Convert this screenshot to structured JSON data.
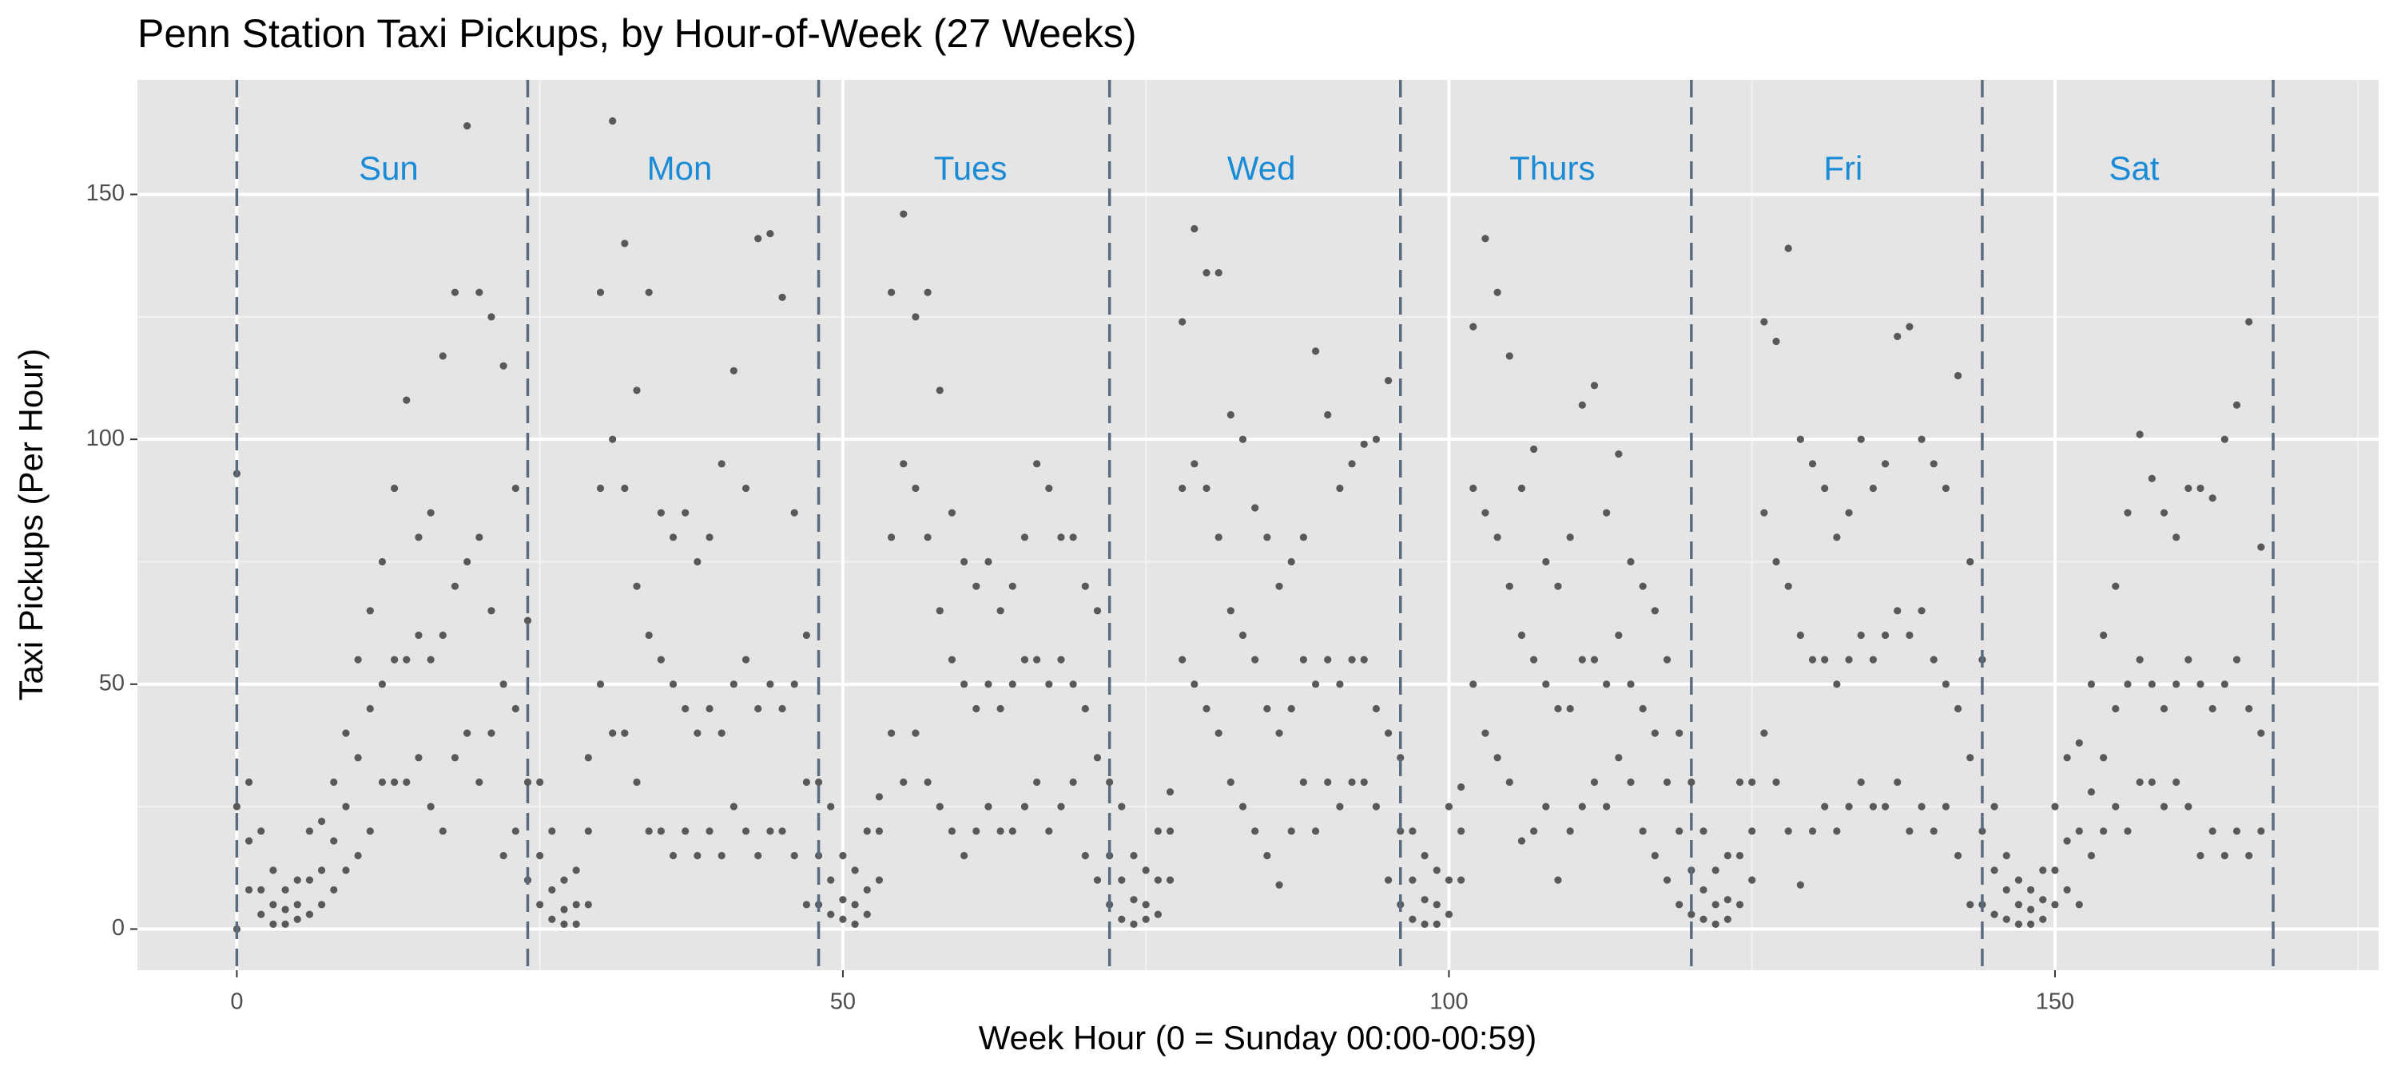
{
  "chart_data": {
    "type": "scatter",
    "title": "Penn Station Taxi Pickups, by Hour-of-Week (27 Weeks)",
    "x_label": "Week Hour (0 = Sunday 00:00-00:59)",
    "y_label": "Taxi Pickups (Per Hour)",
    "color": "#595959",
    "xlim": [
      -8.2,
      176.7
    ],
    "ylim": [
      -8.4,
      173.4
    ],
    "xticks": [
      0,
      50,
      100,
      150
    ],
    "yticks": [
      0,
      50,
      100,
      150
    ],
    "x_minor_grid": [
      25,
      75,
      125,
      175
    ],
    "y_minor_grid": [
      25,
      75,
      125
    ],
    "grid": true,
    "vlines": [
      0,
      24,
      48,
      72,
      96,
      120,
      144,
      168
    ],
    "vline_color": "#5b6b7f",
    "day_labels": [
      "Sun",
      "Mon",
      "Tues",
      "Wed",
      "Thurs",
      "Fri",
      "Sat"
    ],
    "day_label_color": "#1a8bd6",
    "x": [
      0,
      0,
      0,
      1,
      1,
      1,
      2,
      2,
      2,
      3,
      3,
      3,
      4,
      4,
      4,
      5,
      5,
      5,
      6,
      6,
      6,
      7,
      7,
      7,
      8,
      8,
      8,
      9,
      9,
      9,
      10,
      10,
      10,
      11,
      11,
      11,
      12,
      12,
      12,
      13,
      13,
      13,
      14,
      14,
      14,
      15,
      15,
      15,
      16,
      16,
      16,
      17,
      17,
      17,
      18,
      18,
      18,
      19,
      19,
      19,
      20,
      20,
      20,
      21,
      21,
      21,
      22,
      22,
      22,
      23,
      23,
      23,
      24,
      24,
      24,
      25,
      25,
      25,
      26,
      26,
      26,
      27,
      27,
      27,
      28,
      28,
      28,
      29,
      29,
      29,
      30,
      30,
      30,
      31,
      31,
      31,
      32,
      32,
      32,
      33,
      33,
      33,
      34,
      34,
      34,
      35,
      35,
      35,
      36,
      36,
      36,
      37,
      37,
      37,
      38,
      38,
      38,
      39,
      39,
      39,
      40,
      40,
      40,
      41,
      41,
      41,
      42,
      42,
      42,
      43,
      43,
      43,
      44,
      44,
      44,
      45,
      45,
      45,
      46,
      46,
      46,
      47,
      47,
      47,
      48,
      48,
      48,
      49,
      49,
      49,
      50,
      50,
      50,
      51,
      51,
      51,
      52,
      52,
      52,
      53,
      53,
      53,
      54,
      54,
      54,
      55,
      55,
      55,
      56,
      56,
      56,
      57,
      57,
      57,
      58,
      58,
      58,
      59,
      59,
      59,
      60,
      60,
      60,
      61,
      61,
      61,
      62,
      62,
      62,
      63,
      63,
      63,
      64,
      64,
      64,
      65,
      65,
      65,
      66,
      66,
      66,
      67,
      67,
      67,
      68,
      68,
      68,
      69,
      69,
      69,
      70,
      70,
      70,
      71,
      71,
      71,
      72,
      72,
      72,
      73,
      73,
      73,
      74,
      74,
      74,
      75,
      75,
      75,
      76,
      76,
      76,
      77,
      77,
      77,
      78,
      78,
      78,
      79,
      79,
      79,
      80,
      80,
      80,
      81,
      81,
      81,
      82,
      82,
      82,
      83,
      83,
      83,
      84,
      84,
      84,
      85,
      85,
      85,
      86,
      86,
      86,
      87,
      87,
      87,
      88,
      88,
      88,
      89,
      89,
      89,
      90,
      90,
      90,
      91,
      91,
      91,
      92,
      92,
      92,
      93,
      93,
      93,
      94,
      94,
      94,
      95,
      95,
      95,
      96,
      96,
      96,
      97,
      97,
      97,
      98,
      98,
      98,
      99,
      99,
      99,
      100,
      100,
      100,
      101,
      101,
      101,
      102,
      102,
      102,
      103,
      103,
      103,
      104,
      104,
      104,
      105,
      105,
      105,
      106,
      106,
      106,
      107,
      107,
      107,
      108,
      108,
      108,
      109,
      109,
      109,
      110,
      110,
      110,
      111,
      111,
      111,
      112,
      112,
      112,
      113,
      113,
      113,
      114,
      114,
      114,
      115,
      115,
      115,
      116,
      116,
      116,
      117,
      117,
      117,
      118,
      118,
      118,
      119,
      119,
      119,
      120,
      120,
      120,
      121,
      121,
      121,
      122,
      122,
      122,
      123,
      123,
      123,
      124,
      124,
      124,
      125,
      125,
      125,
      126,
      126,
      126,
      127,
      127,
      127,
      128,
      128,
      128,
      129,
      129,
      129,
      130,
      130,
      130,
      131,
      131,
      131,
      132,
      132,
      132,
      133,
      133,
      133,
      134,
      134,
      134,
      135,
      135,
      135,
      136,
      136,
      136,
      137,
      137,
      137,
      138,
      138,
      138,
      139,
      139,
      139,
      140,
      140,
      140,
      141,
      141,
      141,
      142,
      142,
      142,
      143,
      143,
      143,
      144,
      144,
      144,
      145,
      145,
      145,
      146,
      146,
      146,
      147,
      147,
      147,
      148,
      148,
      148,
      149,
      149,
      149,
      150,
      150,
      150,
      151,
      151,
      151,
      152,
      152,
      152,
      153,
      153,
      153,
      154,
      154,
      154,
      155,
      155,
      155,
      156,
      156,
      156,
      157,
      157,
      157,
      158,
      158,
      158,
      159,
      159,
      159,
      160,
      160,
      160,
      161,
      161,
      161,
      162,
      162,
      162,
      163,
      163,
      163,
      164,
      164,
      164,
      165,
      165,
      165,
      166,
      166,
      166,
      167,
      167,
      167
    ],
    "values": [
      0,
      25,
      93,
      8,
      18,
      30,
      3,
      8,
      20,
      1,
      5,
      12,
      1,
      4,
      8,
      2,
      5,
      10,
      3,
      10,
      20,
      5,
      12,
      22,
      8,
      18,
      30,
      12,
      25,
      40,
      15,
      35,
      55,
      20,
      45,
      65,
      30,
      50,
      75,
      30,
      55,
      90,
      30,
      55,
      108,
      35,
      60,
      80,
      25,
      55,
      85,
      20,
      60,
      117,
      35,
      70,
      130,
      40,
      75,
      164,
      30,
      80,
      130,
      40,
      65,
      125,
      15,
      50,
      115,
      20,
      45,
      90,
      10,
      30,
      63,
      5,
      15,
      30,
      2,
      8,
      20,
      1,
      4,
      10,
      1,
      5,
      12,
      5,
      20,
      35,
      50,
      90,
      130,
      40,
      100,
      165,
      40,
      90,
      140,
      30,
      70,
      110,
      20,
      60,
      130,
      20,
      55,
      85,
      15,
      50,
      80,
      20,
      45,
      85,
      15,
      40,
      75,
      20,
      45,
      80,
      15,
      40,
      95,
      25,
      50,
      114,
      20,
      55,
      90,
      15,
      45,
      141,
      20,
      50,
      142,
      20,
      45,
      129,
      15,
      50,
      85,
      5,
      30,
      60,
      5,
      15,
      30,
      3,
      10,
      25,
      2,
      6,
      15,
      1,
      5,
      12,
      3,
      8,
      20,
      10,
      20,
      27,
      40,
      80,
      130,
      30,
      95,
      146,
      40,
      90,
      125,
      30,
      80,
      130,
      25,
      65,
      110,
      20,
      55,
      85,
      15,
      50,
      75,
      20,
      45,
      70,
      25,
      50,
      75,
      20,
      45,
      65,
      20,
      50,
      70,
      25,
      55,
      80,
      30,
      55,
      95,
      20,
      50,
      90,
      25,
      55,
      80,
      30,
      50,
      80,
      15,
      45,
      70,
      10,
      35,
      65,
      5,
      15,
      30,
      2,
      10,
      25,
      1,
      6,
      15,
      2,
      5,
      12,
      3,
      10,
      20,
      10,
      20,
      28,
      55,
      90,
      124,
      50,
      95,
      143,
      45,
      90,
      134,
      40,
      80,
      134,
      30,
      65,
      105,
      25,
      60,
      100,
      20,
      55,
      86,
      15,
      45,
      80,
      9,
      40,
      70,
      20,
      45,
      75,
      30,
      55,
      80,
      20,
      50,
      118,
      30,
      55,
      105,
      25,
      50,
      90,
      30,
      55,
      95,
      30,
      55,
      99,
      25,
      45,
      100,
      10,
      40,
      112,
      5,
      20,
      35,
      2,
      10,
      20,
      1,
      6,
      15,
      1,
      5,
      12,
      3,
      10,
      25,
      10,
      20,
      29,
      50,
      90,
      123,
      40,
      85,
      141,
      35,
      80,
      130,
      30,
      70,
      117,
      18,
      60,
      90,
      20,
      55,
      98,
      25,
      50,
      75,
      10,
      45,
      70,
      20,
      45,
      80,
      25,
      55,
      107,
      30,
      55,
      111,
      25,
      50,
      85,
      35,
      60,
      97,
      30,
      50,
      75,
      20,
      45,
      70,
      15,
      40,
      65,
      10,
      30,
      55,
      5,
      20,
      40,
      3,
      12,
      30,
      2,
      8,
      20,
      1,
      5,
      12,
      2,
      6,
      15,
      5,
      15,
      30,
      10,
      20,
      30,
      40,
      85,
      124,
      30,
      75,
      120,
      20,
      70,
      139,
      9,
      60,
      100,
      20,
      55,
      95,
      25,
      55,
      90,
      20,
      50,
      80,
      25,
      55,
      85,
      30,
      60,
      100,
      25,
      55,
      90,
      25,
      60,
      95,
      30,
      65,
      121,
      20,
      60,
      123,
      25,
      65,
      100,
      20,
      55,
      95,
      25,
      50,
      90,
      15,
      45,
      113,
      5,
      35,
      75,
      5,
      20,
      55,
      3,
      12,
      25,
      2,
      8,
      15,
      1,
      5,
      10,
      1,
      4,
      8,
      2,
      6,
      12,
      5,
      12,
      25,
      8,
      18,
      35,
      5,
      20,
      38,
      15,
      28,
      50,
      20,
      35,
      60,
      25,
      45,
      70,
      20,
      50,
      85,
      30,
      55,
      101,
      30,
      50,
      92,
      25,
      45,
      85,
      30,
      50,
      80,
      25,
      55,
      90,
      15,
      50,
      90,
      20,
      45,
      88,
      15,
      50,
      100,
      20,
      55,
      107,
      15,
      45,
      124,
      20,
      40,
      78
    ]
  }
}
